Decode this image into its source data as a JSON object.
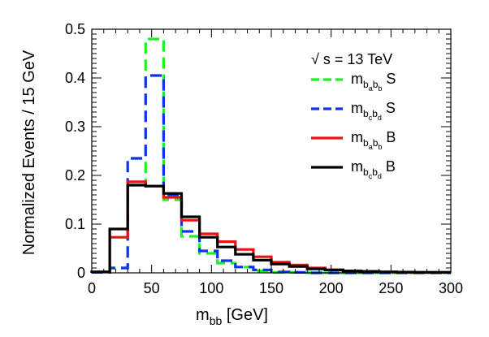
{
  "chart_data": {
    "type": "step-histogram",
    "title": "",
    "xlabel": "m",
    "xlabel_sub": "bb",
    "xlabel_unit": "[GeV]",
    "ylabel": "Normalized Events / 15 GeV",
    "xlim": [
      0,
      300
    ],
    "ylim": [
      0,
      0.5
    ],
    "x_ticks": [
      0,
      50,
      100,
      150,
      200,
      250,
      300
    ],
    "x_tick_labels": [
      "0",
      "50",
      "100",
      "150",
      "200",
      "250",
      "300"
    ],
    "y_ticks": [
      0,
      0.1,
      0.2,
      0.3,
      0.4,
      0.5
    ],
    "y_tick_labels": [
      "0",
      "0.1",
      "0.2",
      "0.3",
      "0.4",
      "0.5"
    ],
    "bin_edges": [
      0,
      15,
      30,
      45,
      60,
      75,
      90,
      105,
      120,
      135,
      150,
      165,
      180,
      195,
      210,
      225,
      240,
      255,
      270,
      285,
      300
    ],
    "annotation": "√ s = 13 TeV",
    "legend_position": "top-right",
    "series": [
      {
        "name": "m_{b_a b_b} S",
        "legend_main": "m",
        "legend_sub1": "b",
        "legend_subsub1": "a",
        "legend_sub2": "b",
        "legend_subsub2": "b",
        "legend_tag": "S",
        "color": "#22ee22",
        "style": "dashed",
        "values": [
          0.001,
          0.01,
          0.18,
          0.48,
          0.15,
          0.075,
          0.04,
          0.02,
          0.012,
          0.004,
          0.001,
          0.001,
          0.0,
          0.0,
          0.0,
          0.0,
          0.0,
          0.0,
          0.0,
          0.0
        ]
      },
      {
        "name": "m_{b_c b_d} S",
        "legend_main": "m",
        "legend_sub1": "b",
        "legend_subsub1": "c",
        "legend_sub2": "b",
        "legend_subsub2": "d",
        "legend_tag": "S",
        "color": "#1133ee",
        "style": "dashed",
        "values": [
          0.001,
          0.01,
          0.235,
          0.405,
          0.16,
          0.085,
          0.045,
          0.025,
          0.012,
          0.006,
          0.002,
          0.001,
          0.0,
          0.0,
          0.0,
          0.0,
          0.0,
          0.0,
          0.0,
          0.0
        ]
      },
      {
        "name": "m_{b_a b_b} B",
        "legend_main": "m",
        "legend_sub1": "b",
        "legend_subsub1": "a",
        "legend_sub2": "b",
        "legend_subsub2": "b",
        "legend_tag": "B",
        "color": "#ee1111",
        "style": "solid",
        "values": [
          0.002,
          0.073,
          0.187,
          0.178,
          0.155,
          0.108,
          0.08,
          0.064,
          0.048,
          0.033,
          0.022,
          0.016,
          0.01,
          0.006,
          0.004,
          0.003,
          0.002,
          0.0015,
          0.001,
          0.001
        ]
      },
      {
        "name": "m_{b_c b_d} B",
        "legend_main": "m",
        "legend_sub1": "b",
        "legend_subsub1": "c",
        "legend_sub2": "b",
        "legend_subsub2": "d",
        "legend_tag": "B",
        "color": "#000000",
        "style": "solid",
        "values": [
          0.002,
          0.09,
          0.18,
          0.178,
          0.163,
          0.115,
          0.073,
          0.053,
          0.038,
          0.026,
          0.018,
          0.013,
          0.008,
          0.006,
          0.004,
          0.003,
          0.002,
          0.0015,
          0.001,
          0.001
        ]
      }
    ]
  }
}
